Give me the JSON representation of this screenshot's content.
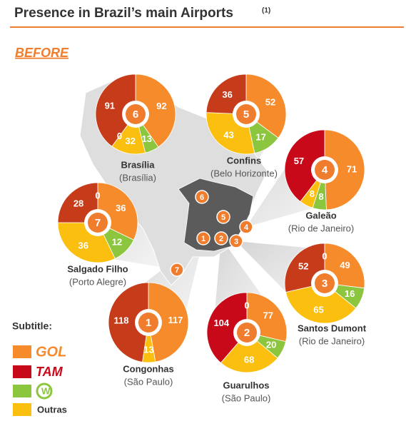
{
  "header": {
    "title": "Presence in Brazil’s main Airports",
    "note": "(1)",
    "section": "BEFORE"
  },
  "legend": {
    "title": "Subtitle:",
    "items": [
      {
        "label": "GOL",
        "color": "#f68b2c"
      },
      {
        "label": "TAM",
        "color": "#c8091a"
      },
      {
        "label": "W",
        "color": "#8cc63f"
      },
      {
        "label": "Outras",
        "color": "#fbbf10"
      }
    ]
  },
  "chart_data": [
    {
      "type": "pie",
      "title": "Brasília",
      "subtitle": "(Brasília)",
      "label": "6",
      "values": [
        92,
        13,
        32,
        0,
        91
      ],
      "colors": [
        "#f68b2c",
        "#8cc63f",
        "#fbbf10",
        "#fbbf10",
        "#c63c1a"
      ]
    },
    {
      "type": "pie",
      "title": "Confins",
      "subtitle": "(Belo Horizonte)",
      "label": "5",
      "values": [
        52,
        17,
        43,
        36
      ],
      "colors": [
        "#f68b2c",
        "#8cc63f",
        "#fbbf10",
        "#c63c1a"
      ]
    },
    {
      "type": "pie",
      "title": "Galeão",
      "subtitle": "(Rio de Janeiro)",
      "label": "4",
      "values": [
        71,
        8,
        8,
        57
      ],
      "colors": [
        "#f68b2c",
        "#8cc63f",
        "#fbbf10",
        "#c8091a"
      ]
    },
    {
      "type": "pie",
      "title": "Salgado Filho",
      "subtitle": "(Porto Alegre)",
      "label": "7",
      "values": [
        36,
        12,
        36,
        28,
        0
      ],
      "colors": [
        "#f68b2c",
        "#8cc63f",
        "#fbbf10",
        "#c63c1a",
        "#c63c1a"
      ]
    },
    {
      "type": "pie",
      "title": "Santos Dumont",
      "subtitle": "(Rio de Janeiro)",
      "label": "3",
      "values": [
        0,
        49,
        16,
        65,
        52
      ],
      "colors": [
        "#c63c1a",
        "#f68b2c",
        "#8cc63f",
        "#fbbf10",
        "#c63c1a"
      ]
    },
    {
      "type": "pie",
      "title": "Congonhas",
      "subtitle": "(São Paulo)",
      "label": "1",
      "values": [
        117,
        13,
        118
      ],
      "colors": [
        "#f68b2c",
        "#fbbf10",
        "#c63c1a"
      ]
    },
    {
      "type": "pie",
      "title": "Guarulhos",
      "subtitle": "(São Paulo)",
      "label": "2",
      "values": [
        77,
        20,
        68,
        104,
        0
      ],
      "colors": [
        "#f68b2c",
        "#8cc63f",
        "#fbbf10",
        "#c8091a",
        "#c8091a"
      ]
    }
  ]
}
